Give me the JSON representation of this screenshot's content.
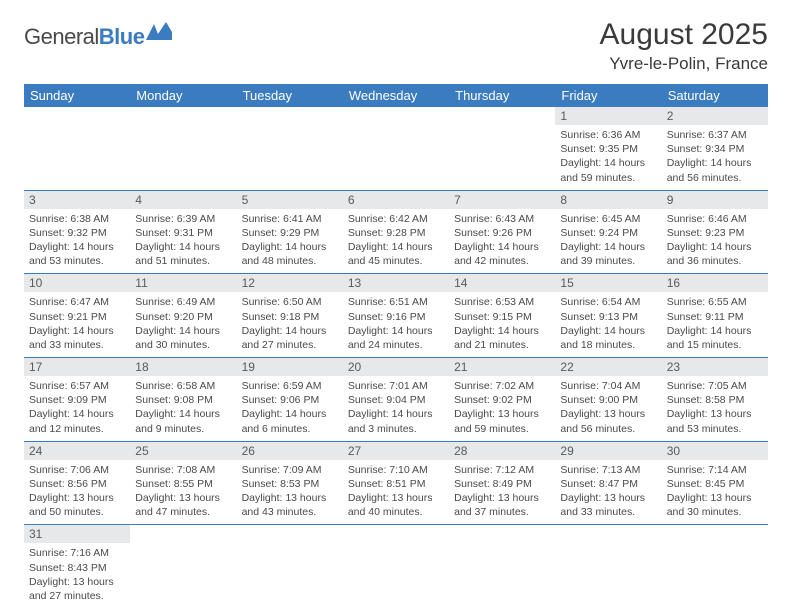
{
  "logo": {
    "text1": "General",
    "text2": "Blue"
  },
  "header": {
    "month_title": "August 2025",
    "location": "Yvre-le-Polin, France"
  },
  "colors": {
    "accent": "#3b7bbf",
    "header_bg": "#3b7bbf",
    "daynum_bg": "#e7e8e9",
    "text": "#3a3a3a",
    "body_bg": "#ffffff"
  },
  "weekdays": [
    "Sunday",
    "Monday",
    "Tuesday",
    "Wednesday",
    "Thursday",
    "Friday",
    "Saturday"
  ],
  "weeks": [
    [
      null,
      null,
      null,
      null,
      null,
      {
        "n": "1",
        "sr": "Sunrise: 6:36 AM",
        "ss": "Sunset: 9:35 PM",
        "dl": "Daylight: 14 hours and 59 minutes."
      },
      {
        "n": "2",
        "sr": "Sunrise: 6:37 AM",
        "ss": "Sunset: 9:34 PM",
        "dl": "Daylight: 14 hours and 56 minutes."
      }
    ],
    [
      {
        "n": "3",
        "sr": "Sunrise: 6:38 AM",
        "ss": "Sunset: 9:32 PM",
        "dl": "Daylight: 14 hours and 53 minutes."
      },
      {
        "n": "4",
        "sr": "Sunrise: 6:39 AM",
        "ss": "Sunset: 9:31 PM",
        "dl": "Daylight: 14 hours and 51 minutes."
      },
      {
        "n": "5",
        "sr": "Sunrise: 6:41 AM",
        "ss": "Sunset: 9:29 PM",
        "dl": "Daylight: 14 hours and 48 minutes."
      },
      {
        "n": "6",
        "sr": "Sunrise: 6:42 AM",
        "ss": "Sunset: 9:28 PM",
        "dl": "Daylight: 14 hours and 45 minutes."
      },
      {
        "n": "7",
        "sr": "Sunrise: 6:43 AM",
        "ss": "Sunset: 9:26 PM",
        "dl": "Daylight: 14 hours and 42 minutes."
      },
      {
        "n": "8",
        "sr": "Sunrise: 6:45 AM",
        "ss": "Sunset: 9:24 PM",
        "dl": "Daylight: 14 hours and 39 minutes."
      },
      {
        "n": "9",
        "sr": "Sunrise: 6:46 AM",
        "ss": "Sunset: 9:23 PM",
        "dl": "Daylight: 14 hours and 36 minutes."
      }
    ],
    [
      {
        "n": "10",
        "sr": "Sunrise: 6:47 AM",
        "ss": "Sunset: 9:21 PM",
        "dl": "Daylight: 14 hours and 33 minutes."
      },
      {
        "n": "11",
        "sr": "Sunrise: 6:49 AM",
        "ss": "Sunset: 9:20 PM",
        "dl": "Daylight: 14 hours and 30 minutes."
      },
      {
        "n": "12",
        "sr": "Sunrise: 6:50 AM",
        "ss": "Sunset: 9:18 PM",
        "dl": "Daylight: 14 hours and 27 minutes."
      },
      {
        "n": "13",
        "sr": "Sunrise: 6:51 AM",
        "ss": "Sunset: 9:16 PM",
        "dl": "Daylight: 14 hours and 24 minutes."
      },
      {
        "n": "14",
        "sr": "Sunrise: 6:53 AM",
        "ss": "Sunset: 9:15 PM",
        "dl": "Daylight: 14 hours and 21 minutes."
      },
      {
        "n": "15",
        "sr": "Sunrise: 6:54 AM",
        "ss": "Sunset: 9:13 PM",
        "dl": "Daylight: 14 hours and 18 minutes."
      },
      {
        "n": "16",
        "sr": "Sunrise: 6:55 AM",
        "ss": "Sunset: 9:11 PM",
        "dl": "Daylight: 14 hours and 15 minutes."
      }
    ],
    [
      {
        "n": "17",
        "sr": "Sunrise: 6:57 AM",
        "ss": "Sunset: 9:09 PM",
        "dl": "Daylight: 14 hours and 12 minutes."
      },
      {
        "n": "18",
        "sr": "Sunrise: 6:58 AM",
        "ss": "Sunset: 9:08 PM",
        "dl": "Daylight: 14 hours and 9 minutes."
      },
      {
        "n": "19",
        "sr": "Sunrise: 6:59 AM",
        "ss": "Sunset: 9:06 PM",
        "dl": "Daylight: 14 hours and 6 minutes."
      },
      {
        "n": "20",
        "sr": "Sunrise: 7:01 AM",
        "ss": "Sunset: 9:04 PM",
        "dl": "Daylight: 14 hours and 3 minutes."
      },
      {
        "n": "21",
        "sr": "Sunrise: 7:02 AM",
        "ss": "Sunset: 9:02 PM",
        "dl": "Daylight: 13 hours and 59 minutes."
      },
      {
        "n": "22",
        "sr": "Sunrise: 7:04 AM",
        "ss": "Sunset: 9:00 PM",
        "dl": "Daylight: 13 hours and 56 minutes."
      },
      {
        "n": "23",
        "sr": "Sunrise: 7:05 AM",
        "ss": "Sunset: 8:58 PM",
        "dl": "Daylight: 13 hours and 53 minutes."
      }
    ],
    [
      {
        "n": "24",
        "sr": "Sunrise: 7:06 AM",
        "ss": "Sunset: 8:56 PM",
        "dl": "Daylight: 13 hours and 50 minutes."
      },
      {
        "n": "25",
        "sr": "Sunrise: 7:08 AM",
        "ss": "Sunset: 8:55 PM",
        "dl": "Daylight: 13 hours and 47 minutes."
      },
      {
        "n": "26",
        "sr": "Sunrise: 7:09 AM",
        "ss": "Sunset: 8:53 PM",
        "dl": "Daylight: 13 hours and 43 minutes."
      },
      {
        "n": "27",
        "sr": "Sunrise: 7:10 AM",
        "ss": "Sunset: 8:51 PM",
        "dl": "Daylight: 13 hours and 40 minutes."
      },
      {
        "n": "28",
        "sr": "Sunrise: 7:12 AM",
        "ss": "Sunset: 8:49 PM",
        "dl": "Daylight: 13 hours and 37 minutes."
      },
      {
        "n": "29",
        "sr": "Sunrise: 7:13 AM",
        "ss": "Sunset: 8:47 PM",
        "dl": "Daylight: 13 hours and 33 minutes."
      },
      {
        "n": "30",
        "sr": "Sunrise: 7:14 AM",
        "ss": "Sunset: 8:45 PM",
        "dl": "Daylight: 13 hours and 30 minutes."
      }
    ],
    [
      {
        "n": "31",
        "sr": "Sunrise: 7:16 AM",
        "ss": "Sunset: 8:43 PM",
        "dl": "Daylight: 13 hours and 27 minutes."
      },
      null,
      null,
      null,
      null,
      null,
      null
    ]
  ]
}
